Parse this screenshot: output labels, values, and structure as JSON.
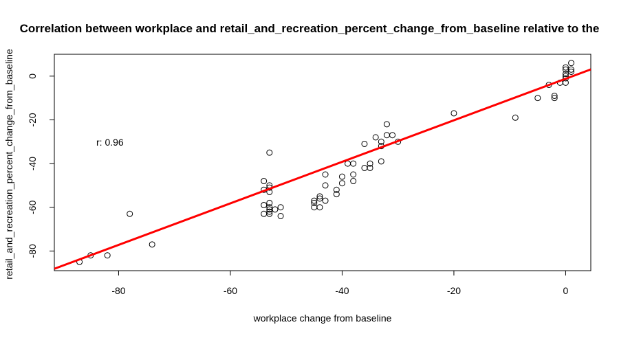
{
  "chart_data": {
    "type": "scatter",
    "title": "Correlation between workplace and retail_and_recreation_percent_change_from_baseline relative to the",
    "xlabel": "workplace change from baseline",
    "ylabel": "retail_and_recreation_percent_change_from_baseline",
    "annotation": "r: 0.96",
    "xlim": [
      -91.5,
      4.5
    ],
    "ylim": [
      -89,
      10
    ],
    "x_ticks": [
      -80,
      -60,
      -40,
      -20,
      0
    ],
    "x_tick_labels": [
      "-80",
      "-60",
      "-40",
      "-20",
      "0"
    ],
    "y_ticks": [
      0,
      -20,
      -40,
      -60,
      -80
    ],
    "y_tick_labels": [
      "0",
      "-20",
      "-40",
      "-60",
      "-80"
    ],
    "grid": false,
    "colors": {
      "points": "#000000",
      "fit_line": "#ff0000"
    },
    "fit_line": {
      "slope": 0.95,
      "intercept": -1.2
    },
    "points": [
      {
        "x": -87,
        "y": -85
      },
      {
        "x": -85,
        "y": -82
      },
      {
        "x": -82,
        "y": -82
      },
      {
        "x": -78,
        "y": -63
      },
      {
        "x": -74,
        "y": -77
      },
      {
        "x": -54,
        "y": -48
      },
      {
        "x": -54,
        "y": -52
      },
      {
        "x": -54,
        "y": -59
      },
      {
        "x": -54,
        "y": -63
      },
      {
        "x": -53,
        "y": -35
      },
      {
        "x": -53,
        "y": -50
      },
      {
        "x": -53,
        "y": -51
      },
      {
        "x": -53,
        "y": -53
      },
      {
        "x": -53,
        "y": -58
      },
      {
        "x": -53,
        "y": -60
      },
      {
        "x": -53,
        "y": -61
      },
      {
        "x": -53,
        "y": -62
      },
      {
        "x": -53,
        "y": -63
      },
      {
        "x": -52,
        "y": -61
      },
      {
        "x": -51,
        "y": -60
      },
      {
        "x": -51,
        "y": -64
      },
      {
        "x": -45,
        "y": -57
      },
      {
        "x": -45,
        "y": -58
      },
      {
        "x": -45,
        "y": -60
      },
      {
        "x": -44,
        "y": -55
      },
      {
        "x": -44,
        "y": -56
      },
      {
        "x": -44,
        "y": -60
      },
      {
        "x": -43,
        "y": -45
      },
      {
        "x": -43,
        "y": -50
      },
      {
        "x": -43,
        "y": -57
      },
      {
        "x": -41,
        "y": -52
      },
      {
        "x": -41,
        "y": -54
      },
      {
        "x": -40,
        "y": -46
      },
      {
        "x": -40,
        "y": -49
      },
      {
        "x": -39,
        "y": -40
      },
      {
        "x": -38,
        "y": -40
      },
      {
        "x": -38,
        "y": -45
      },
      {
        "x": -38,
        "y": -48
      },
      {
        "x": -36,
        "y": -31
      },
      {
        "x": -36,
        "y": -42
      },
      {
        "x": -35,
        "y": -40
      },
      {
        "x": -35,
        "y": -42
      },
      {
        "x": -34,
        "y": -28
      },
      {
        "x": -33,
        "y": -30
      },
      {
        "x": -33,
        "y": -32
      },
      {
        "x": -33,
        "y": -39
      },
      {
        "x": -32,
        "y": -22
      },
      {
        "x": -32,
        "y": -27
      },
      {
        "x": -31,
        "y": -27
      },
      {
        "x": -30,
        "y": -30
      },
      {
        "x": -20,
        "y": -17
      },
      {
        "x": -9,
        "y": -19
      },
      {
        "x": -5,
        "y": -10
      },
      {
        "x": -3,
        "y": -4
      },
      {
        "x": -2,
        "y": -9
      },
      {
        "x": -2,
        "y": -10
      },
      {
        "x": -1,
        "y": -3
      },
      {
        "x": 0,
        "y": 4
      },
      {
        "x": 0,
        "y": 3
      },
      {
        "x": 0,
        "y": 1
      },
      {
        "x": 0,
        "y": 0
      },
      {
        "x": 0,
        "y": -1
      },
      {
        "x": 0,
        "y": -3
      },
      {
        "x": 1,
        "y": 6
      },
      {
        "x": 1,
        "y": 3
      },
      {
        "x": 1,
        "y": 2
      }
    ]
  }
}
